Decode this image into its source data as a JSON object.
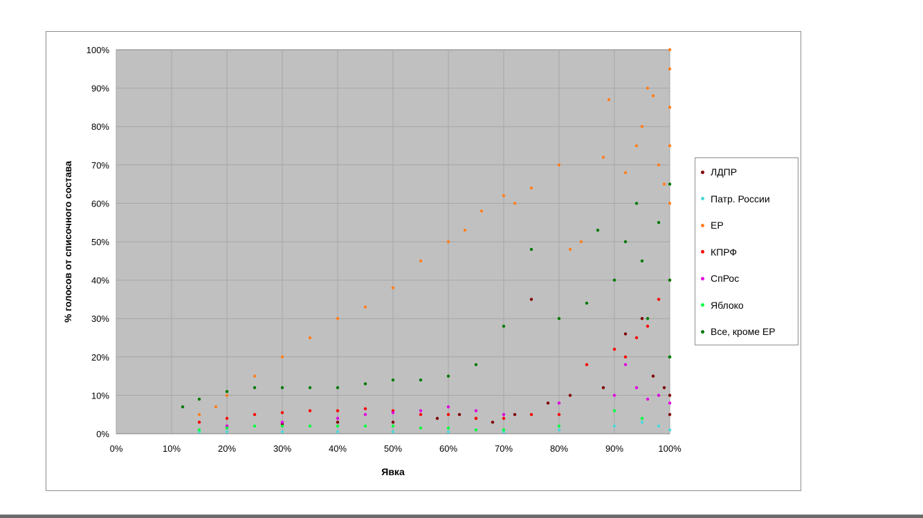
{
  "chart_data": {
    "type": "scatter",
    "title": "",
    "xlabel": "Явка",
    "ylabel": "% голосов от списочного состава",
    "xlim": [
      0,
      100
    ],
    "ylim": [
      0,
      100
    ],
    "x_ticks": [
      "0%",
      "10%",
      "20%",
      "30%",
      "40%",
      "50%",
      "60%",
      "70%",
      "80%",
      "90%",
      "100%"
    ],
    "y_ticks": [
      "0%",
      "10%",
      "20%",
      "30%",
      "40%",
      "50%",
      "60%",
      "70%",
      "80%",
      "90%",
      "100%"
    ],
    "grid": true,
    "plot_background": "#c0c0c0",
    "legend_position": "right",
    "series": [
      {
        "name": "ЛДПР",
        "color": "#800000",
        "x": [
          20,
          30,
          40,
          50,
          58,
          62,
          65,
          68,
          72,
          75,
          78,
          82,
          88,
          92,
          95,
          97,
          99,
          100,
          100,
          100
        ],
        "y": [
          2,
          2.5,
          3,
          3,
          4,
          5,
          4,
          3,
          5,
          35,
          8,
          10,
          12,
          26,
          30,
          15,
          12,
          10,
          5,
          20
        ]
      },
      {
        "name": "Патр. России",
        "color": "#4dd8d8",
        "x": [
          15,
          20,
          30,
          40,
          50,
          60,
          70,
          80,
          90,
          95,
          98,
          100
        ],
        "y": [
          0.5,
          0.5,
          0.5,
          0.5,
          0.5,
          0.5,
          0.5,
          1,
          2,
          3,
          2,
          1
        ]
      },
      {
        "name": "ЕР",
        "color": "#ff7f1f",
        "x": [
          15,
          18,
          20,
          25,
          30,
          35,
          40,
          45,
          50,
          55,
          60,
          63,
          66,
          70,
          72,
          75,
          80,
          82,
          84,
          88,
          89,
          92,
          94,
          95,
          96,
          97,
          98,
          99,
          100,
          100,
          100,
          100,
          100
        ],
        "y": [
          5,
          7,
          10,
          15,
          20,
          25,
          30,
          33,
          38,
          45,
          50,
          53,
          58,
          62,
          60,
          64,
          70,
          48,
          50,
          72,
          87,
          68,
          75,
          80,
          90,
          88,
          70,
          65,
          100,
          95,
          85,
          75,
          60
        ]
      },
      {
        "name": "КПРФ",
        "color": "#ff0000",
        "x": [
          15,
          20,
          25,
          30,
          35,
          40,
          45,
          50,
          55,
          60,
          65,
          70,
          75,
          80,
          85,
          90,
          92,
          94,
          96,
          98,
          100
        ],
        "y": [
          3,
          4,
          5,
          5.5,
          6,
          6,
          6.5,
          6,
          5,
          5,
          4,
          4,
          5,
          5,
          18,
          22,
          20,
          25,
          28,
          35,
          40
        ]
      },
      {
        "name": "СпРос",
        "color": "#e000e0",
        "x": [
          20,
          30,
          40,
          45,
          50,
          55,
          60,
          65,
          70,
          80,
          90,
          92,
          94,
          96,
          98,
          100
        ],
        "y": [
          2,
          3,
          4,
          5,
          5.5,
          6,
          7,
          6,
          5,
          8,
          10,
          18,
          12,
          9,
          10,
          8
        ]
      },
      {
        "name": "Яблоко",
        "color": "#00ff40",
        "x": [
          15,
          20,
          25,
          30,
          35,
          40,
          45,
          50,
          55,
          60,
          65,
          70,
          80,
          90,
          95,
          100
        ],
        "y": [
          1,
          1.5,
          2,
          2,
          2,
          2,
          2,
          2,
          1.5,
          1.5,
          1,
          1,
          2,
          6,
          4,
          20
        ]
      },
      {
        "name": "Все, кроме ЕР",
        "color": "#007a00",
        "x": [
          12,
          15,
          20,
          25,
          30,
          35,
          40,
          45,
          50,
          55,
          60,
          65,
          70,
          75,
          80,
          85,
          87,
          90,
          92,
          94,
          95,
          96,
          98,
          100,
          100,
          100
        ],
        "y": [
          7,
          9,
          11,
          12,
          12,
          12,
          12,
          13,
          14,
          14,
          15,
          18,
          28,
          48,
          30,
          34,
          53,
          40,
          50,
          60,
          45,
          30,
          55,
          65,
          40,
          20
        ]
      }
    ]
  }
}
